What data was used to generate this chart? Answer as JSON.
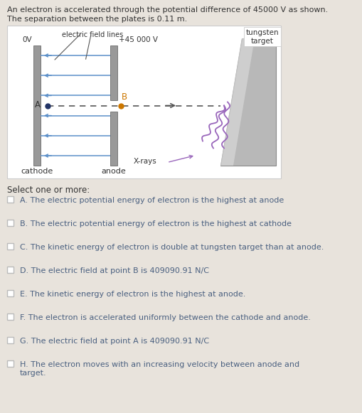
{
  "bg_color": "#e8e3dc",
  "diagram_bg": "#ffffff",
  "header_line1": "An electron is accelerated through the potential difference of 45000 V as shown.",
  "header_line2": "The separation between the plates is 0.11 m.",
  "select_label": "Select one or more:",
  "options": [
    {
      "label": "A",
      "text": "The electric potential energy of electron is the highest at anode"
    },
    {
      "label": "B",
      "text": "The electric potential energy of electron is the highest at cathode"
    },
    {
      "label": "C",
      "text": "The kinetic energy of electron is double at tungsten target than at anode."
    },
    {
      "label": "D",
      "text": "The electric field at point B is 409090.91 N/C"
    },
    {
      "label": "E",
      "text": "The kinetic energy of electron is the highest at anode."
    },
    {
      "label": "F",
      "text": "The electron is accelerated uniformly between the cathode and anode."
    },
    {
      "label": "G",
      "text": "The electric field at point A is 409090.91 N/C"
    },
    {
      "label": "H",
      "text": "The electron moves with an increasing velocity between anode and\ntarget."
    }
  ],
  "field_line_color": "#5b8fc9",
  "text_color": "#4a6fa0",
  "label_color": "#333333",
  "xray_color": "#9966bb",
  "plate_color": "#999999",
  "plate_edge": "#777777",
  "tungsten_color": "#b8b8b8",
  "tungsten_light": "#d8d8d8",
  "checkbox_color": "#bbbbbb",
  "option_text_color": "#4a6080"
}
